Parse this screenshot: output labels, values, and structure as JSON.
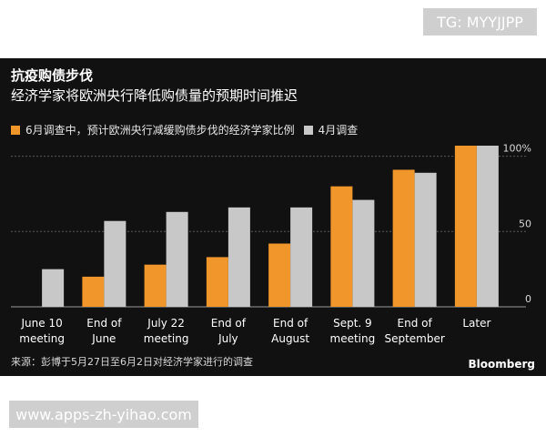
{
  "watermark_top": "TG: MYYJJPP",
  "watermark_bottom": "www.apps-zh-yihao.com",
  "source": "来源：彭博于5月27日至6月2日对经济学家进行的调查",
  "brand": "Bloomberg",
  "colors": {
    "june": "#f0962a",
    "april": "#c8c8c8",
    "panel": "#111111",
    "grid": "#5a5a5a"
  },
  "chart_data": {
    "type": "bar",
    "title": "抗疫购债步伐",
    "subtitle": "经济学家将欧洲央行降低购债量的预期时间推迟",
    "categories": [
      [
        "June 10",
        "meeting"
      ],
      [
        "End of",
        "June"
      ],
      [
        "July 22",
        "meeting"
      ],
      [
        "End of",
        "July"
      ],
      [
        "End of",
        "August"
      ],
      [
        "Sept. 9",
        "meeting"
      ],
      [
        "End of",
        "September"
      ],
      [
        "Later"
      ]
    ],
    "series": [
      {
        "name": "6月调查中，预计欧洲央行减缓购债步伐的经济学家比例",
        "values": [
          0,
          20,
          28,
          33,
          42,
          80,
          91,
          107
        ]
      },
      {
        "name": "4月调查",
        "values": [
          25,
          57,
          63,
          66,
          66,
          71,
          89,
          107
        ]
      }
    ],
    "ylim": [
      0,
      107
    ],
    "yticks": [
      {
        "value": 0,
        "label": "0"
      },
      {
        "value": 50,
        "label": "50"
      },
      {
        "value": 100,
        "label": "100%"
      }
    ],
    "grid": true,
    "legend_position": "top-left"
  }
}
